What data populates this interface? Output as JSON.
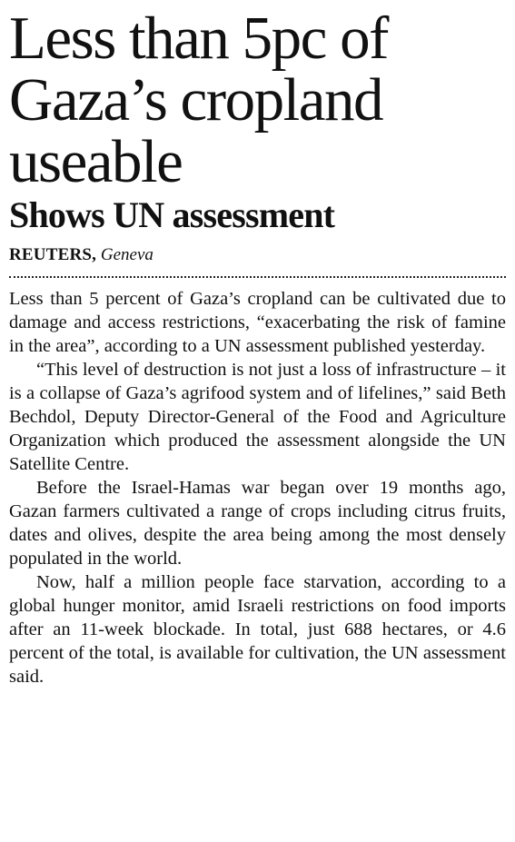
{
  "article": {
    "headline": "Less than 5pc of Gaza’s cropland useable",
    "subheadline": "Shows UN assessment",
    "byline": {
      "agency": "REUTERS,",
      "location": "Geneva"
    },
    "paragraphs": [
      "Less than 5 percent of Gaza’s cropland can be cultivated due to damage and access restrictions, “exacerbating the risk of famine in the area”, according to a UN assessment published yesterday.",
      "“This level of destruction is not just a loss of infrastructure – it is a collapse of Gaza’s agrifood system and of lifelines,” said Beth Bechdol, Deputy Director-General of the Food and Agriculture Organization which produced the assessment alongside the UN Satellite Centre.",
      "Before the Israel-Hamas war began over 19 months ago, Gazan farmers cultivated a range of crops including citrus fruits, dates and olives, despite the area being among the most densely populated in the world.",
      "Now, half a million people face starvation, according to a global hunger monitor, amid Israeli restrictions on food imports after an 11-week blockade. In total, just 688 hectares, or 4.6 percent of the total, is available for cultivation, the UN assessment said."
    ]
  }
}
